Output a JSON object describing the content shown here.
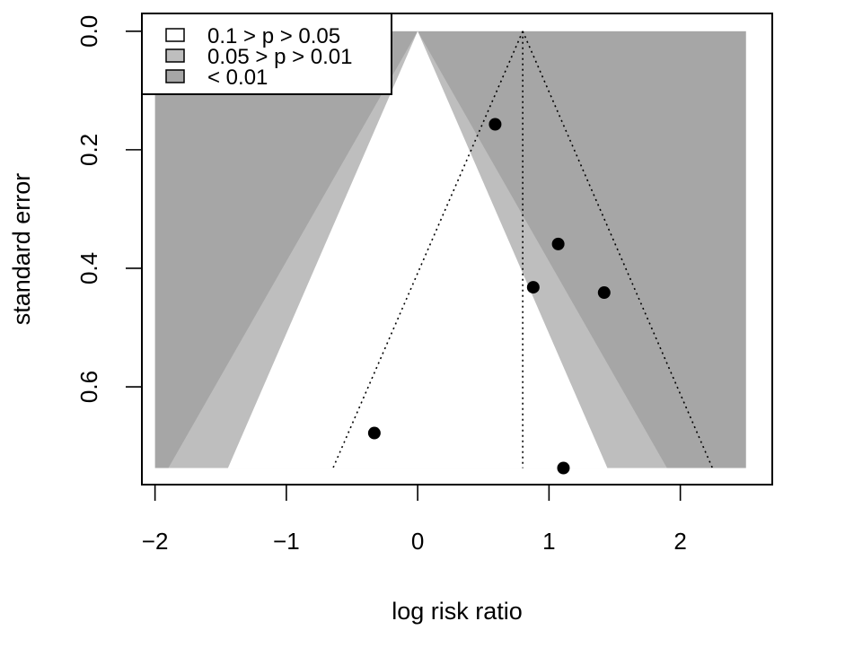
{
  "chart_data": {
    "type": "scatter",
    "subtype": "contour-enhanced funnel plot",
    "xlabel": "log risk ratio",
    "ylabel": "standard error",
    "xlim": [
      -2.1,
      2.7
    ],
    "ylim": [
      0.765,
      -0.03
    ],
    "x_ticks": [
      -2,
      -1,
      0,
      1,
      2
    ],
    "x_tick_labels": [
      "−2",
      "−1",
      "0",
      "1",
      "2"
    ],
    "y_ticks": [
      0.0,
      0.2,
      0.4,
      0.6
    ],
    "y_tick_labels": [
      "0.0",
      "0.2",
      "0.4",
      "0.6"
    ],
    "se_max": 0.737,
    "region_x_range": [
      -2.0,
      2.5
    ],
    "pooled_estimate": 0.8,
    "points": [
      {
        "x": 0.59,
        "se": 0.157
      },
      {
        "x": 1.07,
        "se": 0.359
      },
      {
        "x": 0.88,
        "se": 0.432
      },
      {
        "x": 1.42,
        "se": 0.441
      },
      {
        "x": -0.33,
        "se": 0.678
      },
      {
        "x": 1.11,
        "se": 0.737
      }
    ],
    "contours": [
      {
        "label": "0.1 > p > 0.05",
        "z": 1.645,
        "color": "#ffffff"
      },
      {
        "label": "0.05 > p > 0.01",
        "z": 1.96,
        "color": "#bebebe"
      },
      {
        "label": "< 0.01",
        "z": 2.576,
        "color": "#a6a6a6"
      }
    ],
    "legend": {
      "position": "top-left",
      "entries": [
        {
          "label": "0.1 > p > 0.05",
          "color": "#ffffff"
        },
        {
          "label": "0.05 > p > 0.01",
          "color": "#bebebe"
        },
        {
          "label": "< 0.01",
          "color": "#a6a6a6"
        }
      ]
    }
  }
}
